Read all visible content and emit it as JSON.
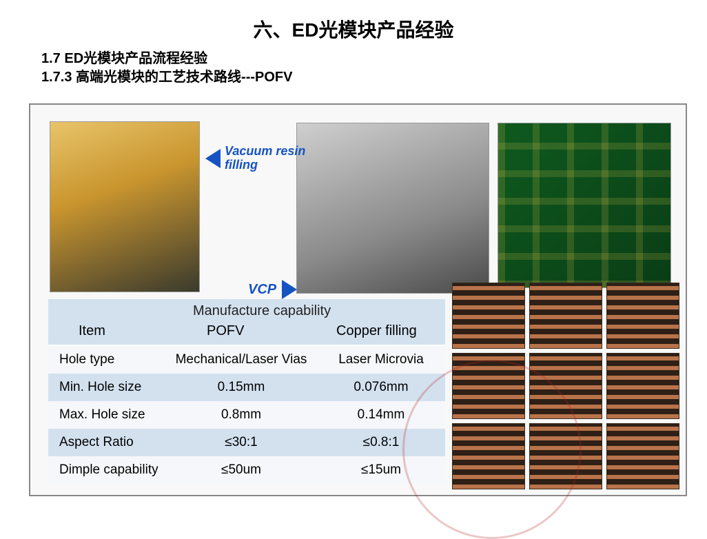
{
  "title": "六、ED光模块产品经验",
  "subtitle_1": "1.7  ED光模块产品流程经验",
  "subtitle_2": "1.7.3 高端光模块的工艺技术路线---POFV",
  "callouts": {
    "vacuum_line1": "Vacuum resin",
    "vacuum_line2": "filling",
    "vcp": "VCP"
  },
  "table": {
    "header_span": "Manufacture capability",
    "col_item": "Item",
    "col_1": "POFV",
    "col_2": "Copper filling",
    "rows": [
      {
        "item": "Hole type",
        "c1": "Mechanical/Laser Vias",
        "c2": "Laser Microvia"
      },
      {
        "item": "Min. Hole size",
        "c1": "0.15mm",
        "c2": "0.076mm"
      },
      {
        "item": "Max. Hole size",
        "c1": "0.8mm",
        "c2": "0.14mm"
      },
      {
        "item": "Aspect Ratio",
        "c1": "≤30:1",
        "c2": "≤0.8:1"
      },
      {
        "item": "Dimple capability",
        "c1": "≤50um",
        "c2": "≤15um"
      }
    ],
    "row_bg_a": "#f5f7fa",
    "row_bg_b": "#d3e1ef",
    "font_size_pt": 15
  },
  "colors": {
    "arrow": "#1653c2",
    "title_text": "#000000",
    "frame_border": "#888888",
    "watermark_ring": "rgba(180,30,30,0.25)"
  }
}
